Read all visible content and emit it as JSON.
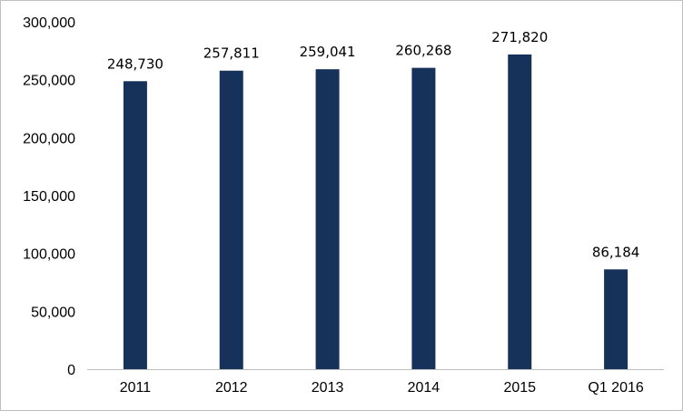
{
  "chart_data": {
    "type": "bar",
    "title": "",
    "xlabel": "",
    "ylabel": "",
    "categories": [
      "2011",
      "2012",
      "2013",
      "2014",
      "2015",
      "Q1 2016"
    ],
    "values": [
      248730,
      257811,
      259041,
      260268,
      271820,
      86184
    ],
    "data_labels": [
      "248,730",
      "257,811",
      "259,041",
      "260,268",
      "271,820",
      "86,184"
    ],
    "ylim": [
      0,
      300000
    ],
    "yticks": [
      0,
      50000,
      100000,
      150000,
      200000,
      250000,
      300000
    ],
    "ytick_labels": [
      "0",
      "50,000",
      "100,000",
      "150,000",
      "200,000",
      "250,000",
      "300,000"
    ],
    "grid": false,
    "legend": "none",
    "bar_color": "#17325A"
  }
}
